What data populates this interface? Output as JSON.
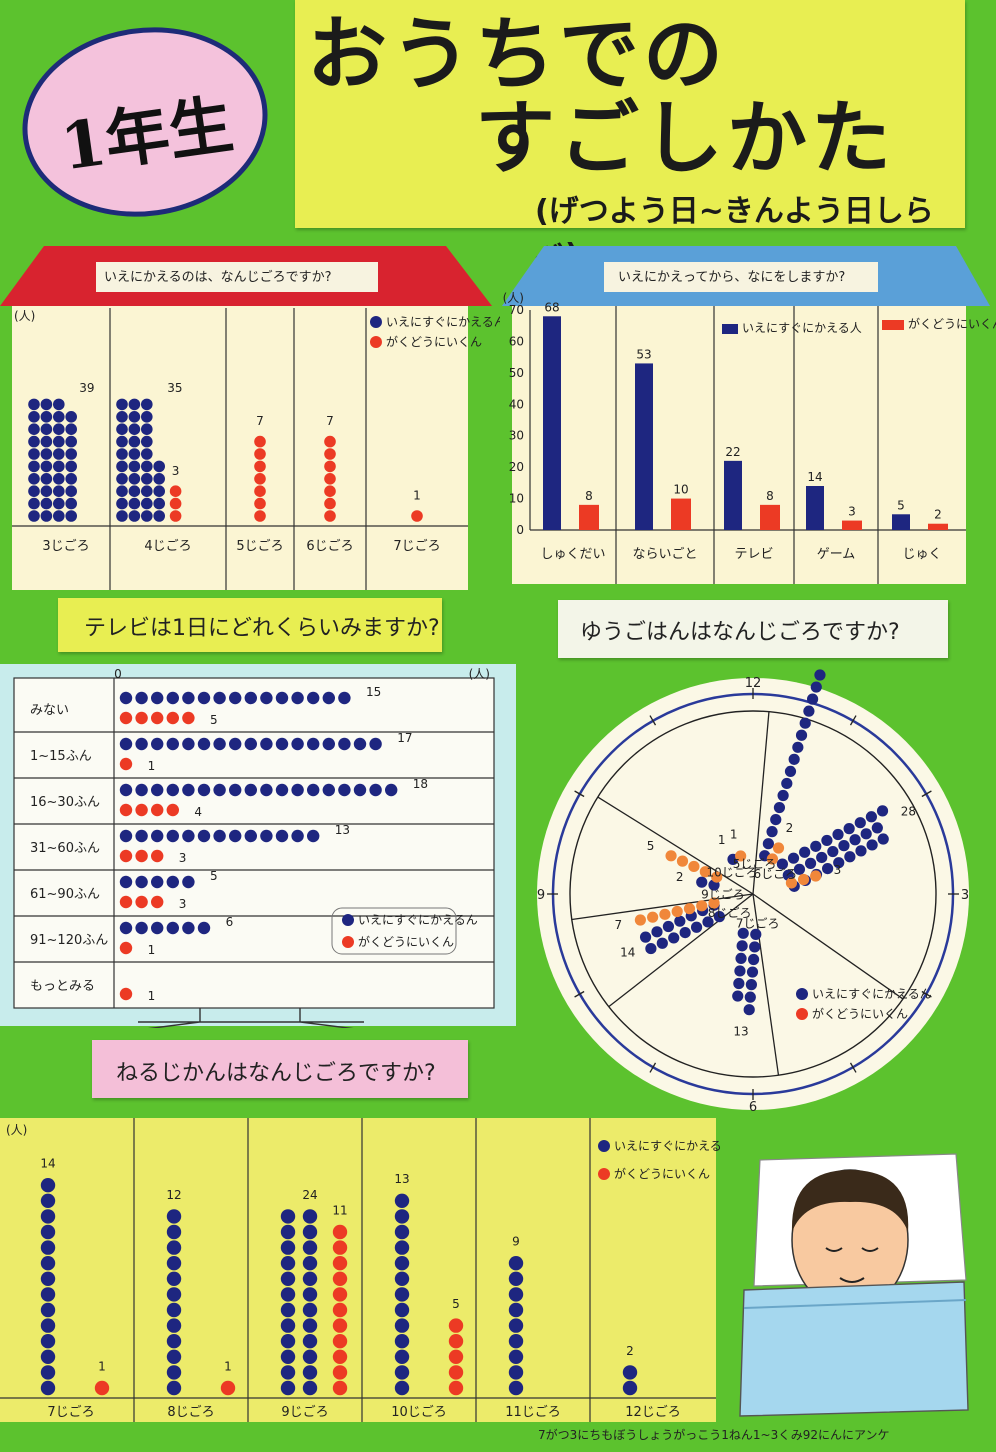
{
  "header": {
    "grade": "1年生",
    "title_line1": "おうちでの",
    "title_line2": "すごしかた",
    "subtitle": "(げつよう日~きんよう日しらべ)"
  },
  "legend": {
    "home": "いえにすぐにかえるん",
    "club": "がくどうにいくん"
  },
  "colors": {
    "home": "#1e2680",
    "club": "#ec3a24",
    "club_light": "#f0873a",
    "background": "#5cc22e"
  },
  "footer": "7がつ3にちもぼうしょうがっこう1ねん1~3くみ92にんにアンケ",
  "chart_data": [
    {
      "type": "scatter",
      "id": "return_time",
      "title": "いえにかえるのは、なんじごろですか?",
      "ylabel": "(人)",
      "categories": [
        "3じごろ",
        "4じごろ",
        "5じごろ",
        "6じごろ",
        "7じごろ"
      ],
      "series": [
        {
          "name": "いえにすぐにかえるん",
          "values": [
            39,
            35,
            0,
            0,
            0
          ]
        },
        {
          "name": "がくどうにいくん",
          "values": [
            0,
            3,
            7,
            7,
            1
          ]
        }
      ]
    },
    {
      "type": "bar",
      "id": "after_home",
      "title": "いえにかえってから、なにをしますか?",
      "ylabel": "(人)",
      "categories": [
        "しゅくだい",
        "ならいごと",
        "テレビ",
        "ゲーム",
        "じゅく"
      ],
      "yticks": [
        "0",
        "10",
        "20",
        "30",
        "40",
        "50",
        "60",
        "70"
      ],
      "ylim": [
        0,
        70
      ],
      "series": [
        {
          "name": "いえにすぐにかえる人",
          "values": [
            68,
            53,
            22,
            14,
            5
          ]
        },
        {
          "name": "がくどうにいくん",
          "values": [
            8,
            10,
            8,
            3,
            2
          ]
        }
      ]
    },
    {
      "type": "scatter",
      "id": "tv_time",
      "title": "テレビは1日にどれくらいみますか?",
      "xlabel": "(人)",
      "xzero": "0",
      "categories": [
        "みない",
        "1~15ふん",
        "16~30ふん",
        "31~60ふん",
        "61~90ふん",
        "91~120ふん",
        "もっとみる"
      ],
      "series": [
        {
          "name": "いえにすぐにかえるん",
          "values": [
            15,
            17,
            18,
            13,
            5,
            6,
            0
          ]
        },
        {
          "name": "がくどうにいくん",
          "values": [
            5,
            1,
            4,
            3,
            3,
            1,
            1
          ]
        }
      ]
    },
    {
      "type": "pie",
      "id": "dinner_time",
      "title": "ゆうごはんはなんじごろですか?",
      "clock_labels": [
        "12",
        "3",
        "6",
        "9"
      ],
      "categories": [
        "5じごろ",
        "6じごろ",
        "7じごろ",
        "8じごろ",
        "9じごろ",
        "10じごろ"
      ],
      "series": [
        {
          "name": "いえにすぐにかえるん",
          "values": [
            16,
            28,
            13,
            14,
            2,
            1
          ]
        },
        {
          "name": "がくどうにいくん",
          "values": [
            2,
            3,
            0,
            7,
            5,
            1
          ]
        }
      ]
    },
    {
      "type": "scatter",
      "id": "bed_time",
      "title": "ねるじかんはなんじごろですか?",
      "ylabel": "(人)",
      "categories": [
        "7じごろ",
        "8じごろ",
        "9じごろ",
        "10じごろ",
        "11じごろ",
        "12じごろ"
      ],
      "series": [
        {
          "name": "いえにすぐにかえるん",
          "values": [
            14,
            12,
            24,
            13,
            9,
            2
          ]
        },
        {
          "name": "がくどうにいくん",
          "values": [
            1,
            1,
            11,
            5,
            0,
            0
          ]
        }
      ]
    }
  ]
}
